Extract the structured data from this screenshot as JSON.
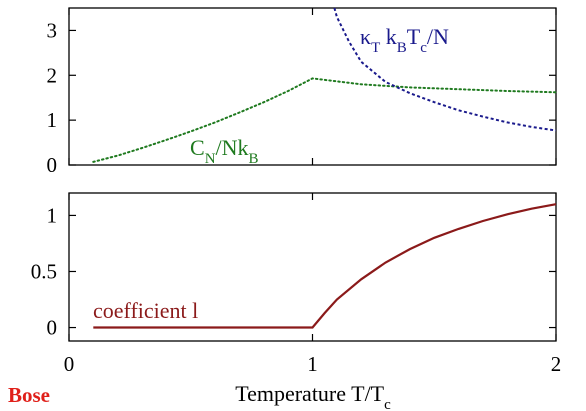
{
  "brand_label": "Bose",
  "colors": {
    "cn": "#1f7a1f",
    "kappa": "#1a1a8c",
    "coef": "#8b1a1a",
    "brand": "#e0201a"
  },
  "chart_data": [
    {
      "type": "line",
      "xlim": [
        0,
        2
      ],
      "ylim": [
        0,
        3.5
      ],
      "yticks": [
        "0",
        "1",
        "2",
        "3"
      ],
      "grid": false,
      "series": [
        {
          "label_parts": {
            "a": "C",
            "a_sub": "N",
            "b": "/Nk",
            "b_sub": "B"
          },
          "style": "dotted",
          "x": [
            0.1,
            0.2,
            0.3,
            0.4,
            0.5,
            0.6,
            0.7,
            0.8,
            0.9,
            1.0,
            1.2,
            1.4,
            1.6,
            1.8,
            2.0
          ],
          "y": [
            0.07,
            0.21,
            0.38,
            0.56,
            0.75,
            0.95,
            1.17,
            1.4,
            1.65,
            1.93,
            1.8,
            1.73,
            1.69,
            1.65,
            1.62
          ]
        },
        {
          "label_parts": {
            "a": "κ",
            "a_sub": "T",
            "b": " k",
            "b_sub": "B",
            "c": "T",
            "c_sub": "c",
            "d": "/N"
          },
          "style": "dashed",
          "x": [
            1.09,
            1.1,
            1.15,
            1.2,
            1.3,
            1.4,
            1.5,
            1.6,
            1.7,
            1.8,
            1.9,
            2.0
          ],
          "y": [
            3.5,
            3.3,
            2.75,
            2.3,
            1.85,
            1.6,
            1.4,
            1.22,
            1.08,
            0.95,
            0.85,
            0.77
          ]
        }
      ]
    },
    {
      "type": "line",
      "xlim": [
        0,
        2
      ],
      "ylim": [
        -0.12,
        1.2
      ],
      "xticks": [
        "0",
        "1",
        "2"
      ],
      "yticks": [
        "0",
        "0.5",
        "1"
      ],
      "grid": false,
      "xlabel_parts": {
        "a": "Temperature T/T",
        "a_sub": "c"
      },
      "series": [
        {
          "label": "coefficient l",
          "style": "solid",
          "x": [
            0.1,
            0.5,
            1.0,
            1.05,
            1.1,
            1.2,
            1.3,
            1.4,
            1.5,
            1.6,
            1.7,
            1.8,
            1.9,
            2.0
          ],
          "y": [
            0,
            0,
            0,
            0.13,
            0.25,
            0.43,
            0.58,
            0.7,
            0.8,
            0.88,
            0.95,
            1.01,
            1.06,
            1.1
          ]
        }
      ]
    }
  ]
}
